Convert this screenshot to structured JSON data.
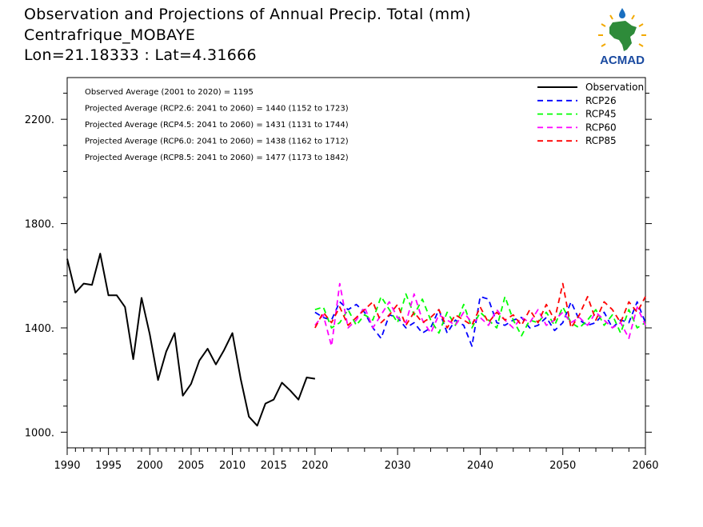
{
  "title": {
    "line1": "Observation and Projections of Annual Precip. Total (mm)",
    "line2": "Centrafrique_MOBAYE",
    "line3": "Lon=21.18333 : Lat=4.31666"
  },
  "logo": {
    "text": "ACMAD",
    "icon": "acmad-africa-logo"
  },
  "colors": {
    "observation": "#000000",
    "rcp26": "#0000ff",
    "rcp45": "#00ff00",
    "rcp60": "#ff00ff",
    "rcp85": "#ff0000",
    "logo_text": "#1a4aa0",
    "logo_green": "#2e8b3a",
    "logo_rays": "#f2a900"
  },
  "annotations": [
    "Observed Average (2001 to 2020) = 1195",
    "Projected Average (RCP2.6: 2041 to 2060) = 1440 (1152 to 1723)",
    "Projected Average (RCP4.5: 2041 to 2060) = 1431 (1131 to 1744)",
    "Projected Average (RCP6.0: 2041 to 2060) = 1438 (1162 to 1712)",
    "Projected Average (RCP8.5: 2041 to 2060) = 1477 (1173 to 1842)"
  ],
  "chart_data": {
    "type": "line",
    "xlim": [
      1990,
      2060
    ],
    "ylim": [
      940,
      2360
    ],
    "yticks": [
      1000,
      1400,
      1800,
      2200
    ],
    "ytick_labels": [
      "1000.",
      "1400.",
      "1800.",
      "2200."
    ],
    "xticks": [
      1990,
      1995,
      2000,
      2005,
      2010,
      2015,
      2020,
      2030,
      2040,
      2050,
      2060
    ],
    "xtick_labels": [
      "1990",
      "1995",
      "2000",
      "2005",
      "2010",
      "2015",
      "2020",
      "2030",
      "2040",
      "2050",
      "2060"
    ],
    "legend_position": "top-right",
    "grid": false,
    "series": [
      {
        "name": "Observation",
        "style": "solid",
        "color": "#000000",
        "x": [
          1990,
          1991,
          1992,
          1993,
          1994,
          1995,
          1996,
          1997,
          1998,
          1999,
          2000,
          2001,
          2002,
          2003,
          2004,
          2005,
          2006,
          2007,
          2008,
          2009,
          2010,
          2011,
          2012,
          2013,
          2014,
          2015,
          2016,
          2017,
          2018,
          2019,
          2020
        ],
        "y": [
          1665,
          1535,
          1570,
          1565,
          1685,
          1525,
          1525,
          1480,
          1280,
          1515,
          1375,
          1200,
          1310,
          1380,
          1140,
          1185,
          1275,
          1320,
          1260,
          1315,
          1380,
          1205,
          1060,
          1025,
          1110,
          1125,
          1190,
          1160,
          1125,
          1210,
          1205
        ]
      },
      {
        "name": "RCP26",
        "style": "dashed",
        "color": "#0000ff",
        "x": [
          2020,
          2021,
          2022,
          2023,
          2024,
          2025,
          2026,
          2027,
          2028,
          2029,
          2030,
          2031,
          2032,
          2033,
          2034,
          2035,
          2036,
          2037,
          2038,
          2039,
          2040,
          2041,
          2042,
          2043,
          2044,
          2045,
          2046,
          2047,
          2048,
          2049,
          2050,
          2051,
          2052,
          2053,
          2054,
          2055,
          2056,
          2057,
          2058,
          2059,
          2060
        ],
        "y": [
          1460,
          1440,
          1430,
          1500,
          1470,
          1490,
          1460,
          1400,
          1360,
          1450,
          1440,
          1400,
          1420,
          1380,
          1400,
          1470,
          1380,
          1430,
          1410,
          1330,
          1520,
          1510,
          1420,
          1410,
          1430,
          1440,
          1400,
          1410,
          1440,
          1390,
          1420,
          1500,
          1430,
          1410,
          1420,
          1460,
          1400,
          1430,
          1420,
          1500,
          1420
        ]
      },
      {
        "name": "RCP45",
        "style": "dashed",
        "color": "#00ff00",
        "x": [
          2020,
          2021,
          2022,
          2023,
          2024,
          2025,
          2026,
          2027,
          2028,
          2029,
          2030,
          2031,
          2032,
          2033,
          2034,
          2035,
          2036,
          2037,
          2038,
          2039,
          2040,
          2041,
          2042,
          2043,
          2044,
          2045,
          2046,
          2047,
          2048,
          2049,
          2050,
          2051,
          2052,
          2053,
          2054,
          2055,
          2056,
          2057,
          2058,
          2059,
          2060
        ],
        "y": [
          1470,
          1480,
          1400,
          1420,
          1470,
          1410,
          1450,
          1430,
          1520,
          1470,
          1420,
          1530,
          1450,
          1510,
          1430,
          1380,
          1460,
          1410,
          1490,
          1400,
          1460,
          1430,
          1400,
          1520,
          1430,
          1370,
          1430,
          1420,
          1460,
          1410,
          1480,
          1420,
          1400,
          1430,
          1470,
          1410,
          1450,
          1380,
          1470,
          1400,
          1420
        ]
      },
      {
        "name": "RCP60",
        "style": "dashed",
        "color": "#ff00ff",
        "x": [
          2020,
          2021,
          2022,
          2023,
          2024,
          2025,
          2026,
          2027,
          2028,
          2029,
          2030,
          2031,
          2032,
          2033,
          2034,
          2035,
          2036,
          2037,
          2038,
          2039,
          2040,
          2041,
          2042,
          2043,
          2044,
          2045,
          2046,
          2047,
          2048,
          2049,
          2050,
          2051,
          2052,
          2053,
          2054,
          2055,
          2056,
          2057,
          2058,
          2059,
          2060
        ],
        "y": [
          1410,
          1450,
          1330,
          1570,
          1400,
          1430,
          1480,
          1400,
          1450,
          1500,
          1440,
          1420,
          1530,
          1430,
          1380,
          1450,
          1430,
          1410,
          1460,
          1420,
          1440,
          1410,
          1470,
          1430,
          1400,
          1440,
          1420,
          1470,
          1410,
          1430,
          1460,
          1420,
          1440,
          1410,
          1460,
          1430,
          1400,
          1420,
          1360,
          1480,
          1410
        ]
      },
      {
        "name": "RCP85",
        "style": "dashed",
        "color": "#ff0000",
        "x": [
          2020,
          2021,
          2022,
          2023,
          2024,
          2025,
          2026,
          2027,
          2028,
          2029,
          2030,
          2031,
          2032,
          2033,
          2034,
          2035,
          2036,
          2037,
          2038,
          2039,
          2040,
          2041,
          2042,
          2043,
          2044,
          2045,
          2046,
          2047,
          2048,
          2049,
          2050,
          2051,
          2052,
          2053,
          2054,
          2055,
          2056,
          2057,
          2058,
          2059,
          2060
        ],
        "y": [
          1400,
          1460,
          1420,
          1480,
          1410,
          1440,
          1470,
          1500,
          1420,
          1450,
          1490,
          1410,
          1460,
          1420,
          1440,
          1470,
          1400,
          1450,
          1430,
          1410,
          1480,
          1420,
          1460,
          1430,
          1450,
          1410,
          1470,
          1420,
          1490,
          1430,
          1570,
          1400,
          1450,
          1520,
          1430,
          1500,
          1470,
          1420,
          1500,
          1460,
          1520
        ]
      }
    ]
  }
}
